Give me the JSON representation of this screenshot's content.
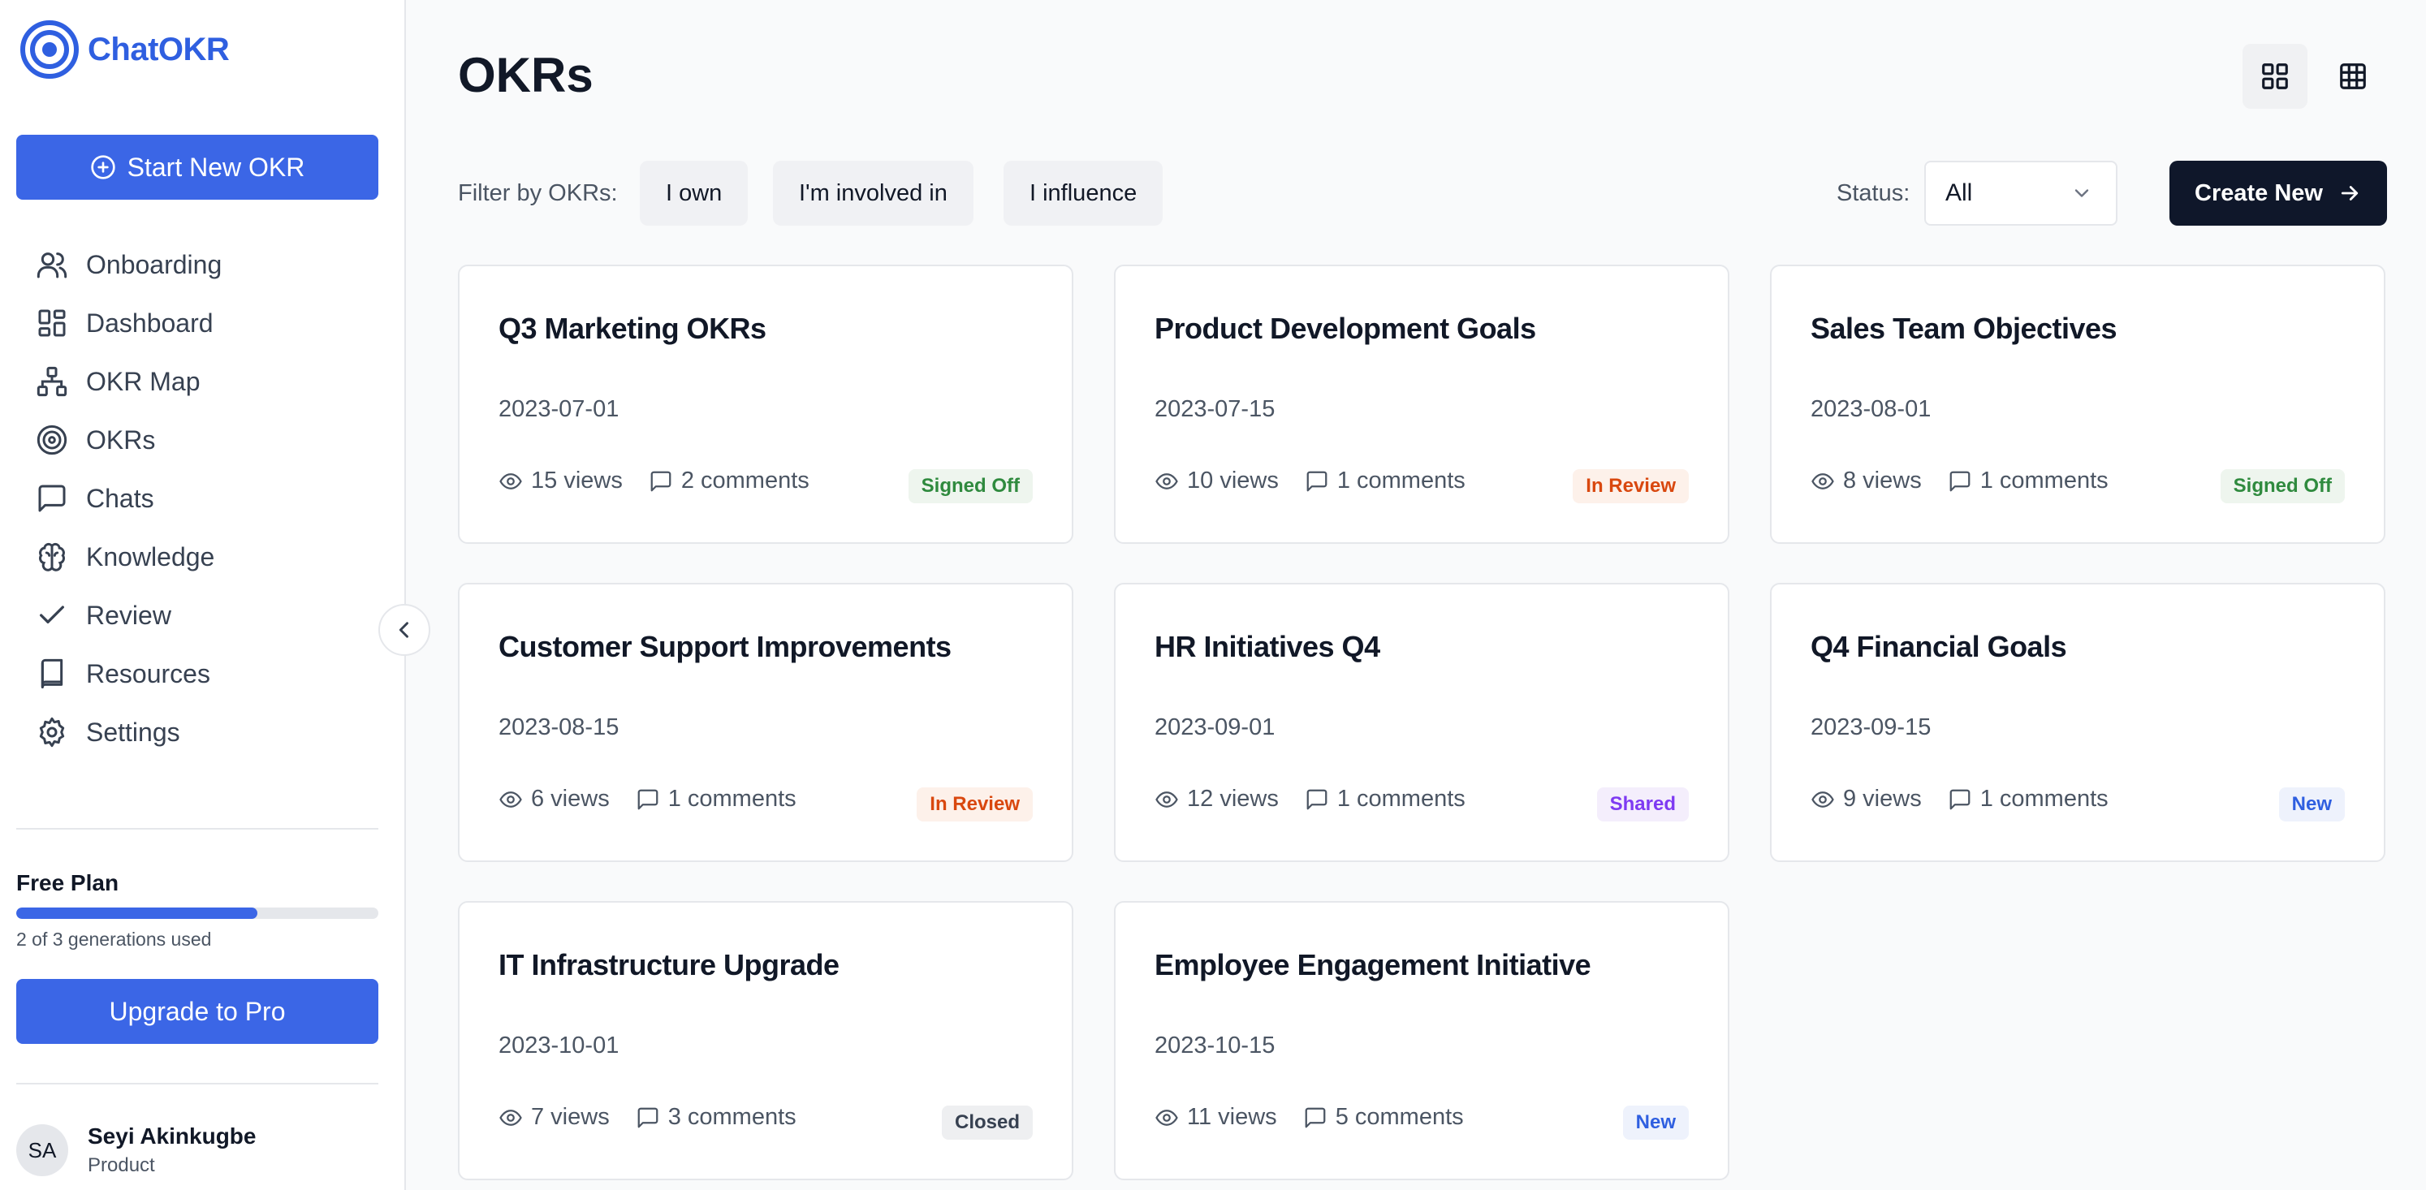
{
  "app": {
    "name": "ChatOKR",
    "brand_color": "#2f5fe0"
  },
  "sidebar": {
    "start_button": "Start New OKR",
    "items": [
      {
        "label": "Onboarding",
        "icon": "users-icon"
      },
      {
        "label": "Dashboard",
        "icon": "dashboard-icon"
      },
      {
        "label": "OKR Map",
        "icon": "map-icon"
      },
      {
        "label": "OKRs",
        "icon": "target-icon"
      },
      {
        "label": "Chats",
        "icon": "chat-icon"
      },
      {
        "label": "Knowledge",
        "icon": "brain-icon"
      },
      {
        "label": "Review",
        "icon": "check-icon"
      },
      {
        "label": "Resources",
        "icon": "book-icon"
      },
      {
        "label": "Settings",
        "icon": "gear-icon"
      }
    ],
    "plan": {
      "title": "Free Plan",
      "usage_text": "2 of 3 generations used",
      "used": 2,
      "total": 3,
      "upgrade_button": "Upgrade to Pro"
    },
    "user": {
      "initials": "SA",
      "name": "Seyi Akinkugbe",
      "role": "Product"
    }
  },
  "main": {
    "title": "OKRs",
    "filter_label": "Filter by OKRs:",
    "filters": [
      "I own",
      "I'm involved in",
      "I influence"
    ],
    "status_label": "Status:",
    "status_value": "All",
    "create_button": "Create New",
    "cards": [
      {
        "title": "Q3 Marketing OKRs",
        "date": "2023-07-01",
        "views": "15 views",
        "comments": "2 comments",
        "status": "Signed Off"
      },
      {
        "title": "Product Development Goals",
        "date": "2023-07-15",
        "views": "10 views",
        "comments": "1 comments",
        "status": "In Review"
      },
      {
        "title": "Sales Team Objectives",
        "date": "2023-08-01",
        "views": "8 views",
        "comments": "1 comments",
        "status": "Signed Off"
      },
      {
        "title": "Customer Support Improvements",
        "date": "2023-08-15",
        "views": "6 views",
        "comments": "1 comments",
        "status": "In Review"
      },
      {
        "title": "HR Initiatives Q4",
        "date": "2023-09-01",
        "views": "12 views",
        "comments": "1 comments",
        "status": "Shared"
      },
      {
        "title": "Q4 Financial Goals",
        "date": "2023-09-15",
        "views": "9 views",
        "comments": "1 comments",
        "status": "New"
      },
      {
        "title": "IT Infrastructure Upgrade",
        "date": "2023-10-01",
        "views": "7 views",
        "comments": "3 comments",
        "status": "Closed"
      },
      {
        "title": "Employee Engagement Initiative",
        "date": "2023-10-15",
        "views": "11 views",
        "comments": "5 comments",
        "status": "New"
      }
    ]
  },
  "status_colors": {
    "Signed Off": {
      "text": "#2f8a3e",
      "bg": "#eef5ee"
    },
    "In Review": {
      "text": "#d9480f",
      "bg": "#fdf1ea"
    },
    "Shared": {
      "text": "#7e3af2",
      "bg": "#f4eefc"
    },
    "New": {
      "text": "#2f5fe0",
      "bg": "#eef2fc"
    },
    "Closed": {
      "text": "#374151",
      "bg": "#eeeff1"
    }
  }
}
